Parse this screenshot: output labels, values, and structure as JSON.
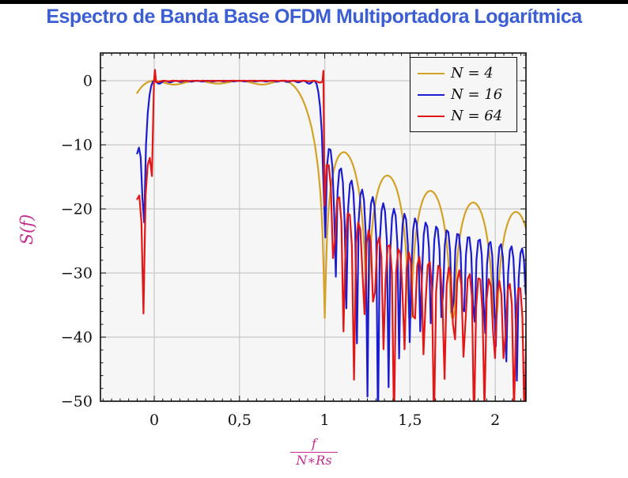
{
  "page": {
    "title": "Espectro de Banda Base OFDM Multiportadora Logarítmica"
  },
  "colors": {
    "title_blue": "#3c5ed3",
    "axis_label_magenta": "#c42b8e",
    "plot_background": "#f6f6f6",
    "grid_gray": "#c8c8c8",
    "frame_black": "#0d0d0d",
    "tick_label_black": "#111111",
    "top_bar_black": "#000000",
    "series_gold": "#d5a228",
    "series_blue": "#1b1bd1",
    "series_red": "#e21717"
  },
  "chart_data": {
    "type": "line",
    "title": "Espectro de Banda Base OFDM Multiportadora Logarítmica",
    "ylabel": "S(f)",
    "xlabel_numerator": "f",
    "xlabel_denominator": "N∗Rs",
    "xlim": [
      -0.3155,
      2.18
    ],
    "ylim": [
      -50,
      4.32
    ],
    "grid": true,
    "legend_position": "top-right",
    "x_ticks": [
      {
        "v": 0,
        "label": "0"
      },
      {
        "v": 0.5,
        "label": "0,5"
      },
      {
        "v": 1,
        "label": "1"
      },
      {
        "v": 1.5,
        "label": "1,5"
      },
      {
        "v": 2,
        "label": "2"
      }
    ],
    "y_ticks": [
      {
        "v": 0,
        "label": "0"
      },
      {
        "v": -10,
        "label": "−10"
      },
      {
        "v": -20,
        "label": "−20"
      },
      {
        "v": -30,
        "label": "−30"
      },
      {
        "v": -40,
        "label": "−40"
      },
      {
        "v": -50,
        "label": "−50"
      }
    ],
    "x_minor_step": 0.05,
    "y_minor_step": 2,
    "formula": "S_N(x) = 10*log10( sum_{k=0}^{N-1} sinc^2(N*x - k) ), x = f/(N*Rs), clipped at -50 dB",
    "in_band_level_db": 0,
    "band_edges_x": [
      0,
      1
    ],
    "series": [
      {
        "label": "N = 4",
        "N": 4,
        "color": "#d5a228",
        "x_start": -0.1,
        "x_end": 2.181,
        "sample_step": 0.0066667,
        "floor_db": -37,
        "edge_spikes": [],
        "observed": {
          "start_point": [
            -0.1,
            -1.9
          ],
          "first_sidelobe": [
            1.12,
            -11
          ],
          "lobe_period": 0.25,
          "sidelobe_peaks_db": [
            -11,
            -15,
            -17.5,
            -19,
            -21.5
          ],
          "null_depth_db": -35
        }
      },
      {
        "label": "N = 16",
        "N": 16,
        "color": "#1b1bd1",
        "x_start": -0.1,
        "x_end": 2.181,
        "sample_step": 0.0103093,
        "floor_db": -54,
        "edge_spikes": [],
        "observed": {
          "start_point": [
            -0.1,
            -11.5
          ],
          "left_null": [
            -0.0625,
            -17.5
          ],
          "first_sidelobe": [
            1.03,
            -10.5
          ],
          "lobe_period": 0.0625,
          "envelope_at_x2_db": -23,
          "deep_null_x": 1.93
        }
      },
      {
        "label": "N = 64",
        "N": 64,
        "color": "#e21717",
        "x_start": -0.1,
        "x_end": 2.19,
        "sample_step": 0.0123457,
        "floor_db": -54,
        "edge_spikes": [
          {
            "x": 0.004,
            "db": 1.7
          },
          {
            "x": 0.992,
            "db": 1.55
          }
        ],
        "observed": {
          "start_point": [
            -0.1,
            -18.5
          ],
          "apparent_lobe_period": 0.059,
          "band_edge_overshoot_db": 1.6,
          "deep_nulls_x": [
            1.4,
            1.68,
            1.99
          ],
          "left_peak": [
            -0.026,
            -13.5
          ]
        }
      }
    ]
  }
}
